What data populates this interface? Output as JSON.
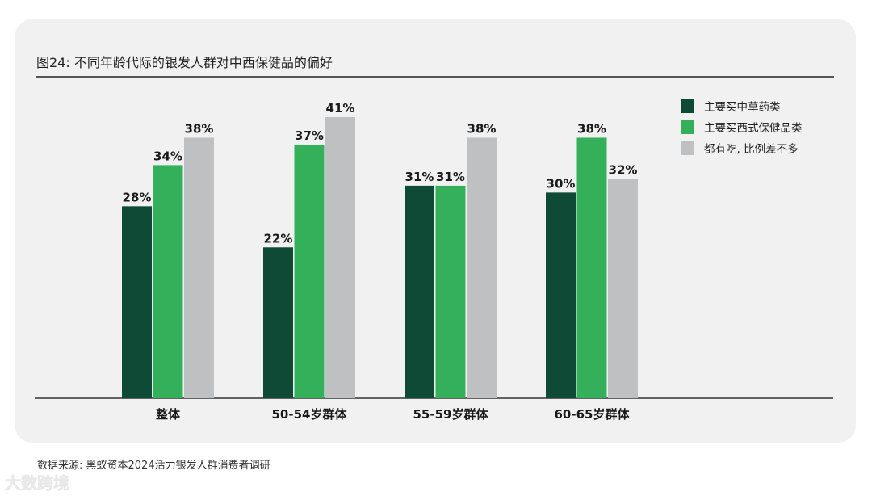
{
  "title": "图24: 不同年龄代际的银发人群对中西保健品的偏好",
  "source": "数据来源: 黑蚁资本2024活力银发人群消费者调研",
  "watermark": "大数跨境",
  "chart_data": {
    "type": "bar",
    "categories": [
      "整体",
      "50-54岁群体",
      "55-59岁群体",
      "60-65岁群体"
    ],
    "series": [
      {
        "name": "主要买中草药类",
        "values": [
          28,
          22,
          31,
          30
        ],
        "color": "#0f4a37"
      },
      {
        "name": "主要买西式保健品类",
        "values": [
          34,
          37,
          31,
          38
        ],
        "color": "#34b05a"
      },
      {
        "name": "都有吃, 比例差不多",
        "values": [
          38,
          41,
          38,
          32
        ],
        "color": "#bfc0c1"
      }
    ],
    "value_suffix": "%",
    "ylim": [
      0,
      41
    ],
    "grid": false,
    "legend": "top-right"
  }
}
